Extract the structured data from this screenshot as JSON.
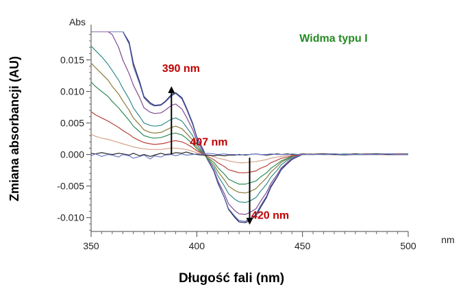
{
  "chart_data": {
    "type": "line",
    "title": "",
    "annotation_title": "Widma typu I",
    "xlabel": "Długość fali (nm)",
    "ylabel": "Zmiana absorbancji (AU)",
    "x_unit": "nm",
    "y_unit": "Abs",
    "xlim": [
      350,
      500
    ],
    "ylim": [
      -0.0122,
      0.0195
    ],
    "x_ticks": [
      350,
      400,
      450,
      500
    ],
    "x_tick_labels": [
      "350",
      "400",
      "450",
      "500"
    ],
    "y_ticks": [
      -0.01,
      -0.005,
      0.0,
      0.005,
      0.01,
      0.015
    ],
    "y_tick_labels": [
      "-0.010",
      "-0.005",
      "0.000",
      "0.005",
      "0.010",
      "0.015"
    ],
    "grid": false,
    "annotations": [
      {
        "label": "390 nm",
        "x": 388,
        "y_from": 0.0,
        "y_to": 0.0105,
        "color": "#c00000"
      },
      {
        "label": "407 nm",
        "x": 407,
        "y": 0.0,
        "color": "#c00000"
      },
      {
        "label": "420 nm",
        "x": 425,
        "y_from": -0.0005,
        "y_to": -0.0108,
        "color": "#c00000"
      }
    ],
    "x": [
      350,
      352,
      355,
      358,
      360,
      363,
      365,
      368,
      370,
      373,
      375,
      378,
      380,
      383,
      385,
      388,
      390,
      393,
      395,
      398,
      400,
      403,
      405,
      408,
      410,
      413,
      415,
      418,
      420,
      423,
      425,
      428,
      430,
      433,
      435,
      438,
      440,
      443,
      445,
      448,
      450,
      455,
      460,
      465,
      470,
      475,
      480,
      485,
      490,
      495,
      500
    ],
    "series": [
      {
        "color": "#2b2b5e",
        "values": [
          0.0195,
          0.0195,
          0.0195,
          0.0195,
          0.0195,
          0.0195,
          0.0195,
          0.0178,
          0.0145,
          0.0115,
          0.0092,
          0.0082,
          0.0078,
          0.0079,
          0.0084,
          0.0095,
          0.0098,
          0.009,
          0.0075,
          0.005,
          0.0028,
          0.0008,
          -0.0007,
          -0.0025,
          -0.0045,
          -0.0068,
          -0.0087,
          -0.01,
          -0.0107,
          -0.0108,
          -0.0105,
          -0.0097,
          -0.0085,
          -0.0068,
          -0.0052,
          -0.0036,
          -0.0024,
          -0.0014,
          -0.0008,
          -0.0003,
          0.0,
          0.0001,
          0.0001,
          0.0001,
          0.0,
          0.0,
          0.0,
          0.0001,
          0.0001,
          0.0001,
          0.0001
        ]
      },
      {
        "color": "#4a5aa8",
        "values": [
          0.0195,
          0.0195,
          0.0195,
          0.0195,
          0.0195,
          0.0195,
          0.0195,
          0.0175,
          0.014,
          0.0112,
          0.009,
          0.008,
          0.0077,
          0.0078,
          0.0083,
          0.0093,
          0.0097,
          0.0088,
          0.0073,
          0.0048,
          0.0027,
          0.0007,
          -0.0008,
          -0.0026,
          -0.0046,
          -0.0068,
          -0.0086,
          -0.0098,
          -0.0105,
          -0.0106,
          -0.0102,
          -0.0095,
          -0.0082,
          -0.0066,
          -0.005,
          -0.0035,
          -0.0023,
          -0.0013,
          -0.0007,
          -0.0003,
          0.0,
          0.0001,
          0.0,
          0.0,
          -0.0001,
          0.0,
          0.0,
          0.0,
          0.0001,
          0.0,
          0.0
        ]
      },
      {
        "color": "#7e4a8e",
        "values": [
          0.0195,
          0.0195,
          0.0195,
          0.0195,
          0.019,
          0.017,
          0.015,
          0.0128,
          0.011,
          0.009,
          0.0074,
          0.0067,
          0.0065,
          0.0066,
          0.007,
          0.0078,
          0.008,
          0.0072,
          0.006,
          0.004,
          0.0022,
          0.0005,
          -0.0008,
          -0.0024,
          -0.0042,
          -0.0062,
          -0.0078,
          -0.0089,
          -0.0094,
          -0.0095,
          -0.0092,
          -0.0086,
          -0.0075,
          -0.006,
          -0.0046,
          -0.0032,
          -0.0021,
          -0.0012,
          -0.0006,
          -0.0002,
          0.0,
          0.0001,
          0.0001,
          0.0,
          0.0,
          0.0,
          0.0001,
          0.0,
          0.0,
          0.0,
          0.0
        ]
      },
      {
        "color": "#2e8b8b",
        "values": [
          0.0172,
          0.0165,
          0.0155,
          0.0143,
          0.0133,
          0.0118,
          0.0105,
          0.0088,
          0.0074,
          0.006,
          0.005,
          0.0046,
          0.0045,
          0.0046,
          0.005,
          0.0056,
          0.0058,
          0.0053,
          0.0044,
          0.003,
          0.0016,
          0.0003,
          -0.0007,
          -0.002,
          -0.0034,
          -0.005,
          -0.0062,
          -0.0071,
          -0.0075,
          -0.0076,
          -0.0074,
          -0.0068,
          -0.0059,
          -0.0047,
          -0.0036,
          -0.0025,
          -0.0016,
          -0.0009,
          -0.0004,
          -0.0001,
          0.0,
          0.0001,
          0.0,
          0.0001,
          0.0,
          0.0,
          0.0001,
          0.0001,
          0.0,
          0.0001,
          0.0
        ]
      },
      {
        "color": "#8a7a3a",
        "values": [
          0.0145,
          0.0138,
          0.0128,
          0.0118,
          0.0108,
          0.0096,
          0.0085,
          0.007,
          0.0058,
          0.0047,
          0.0039,
          0.0035,
          0.0034,
          0.0035,
          0.0038,
          0.0043,
          0.0045,
          0.0041,
          0.0034,
          0.0023,
          0.0012,
          0.0002,
          -0.0006,
          -0.0016,
          -0.0027,
          -0.004,
          -0.005,
          -0.0057,
          -0.006,
          -0.0061,
          -0.0059,
          -0.0054,
          -0.0047,
          -0.0037,
          -0.0028,
          -0.0019,
          -0.0012,
          -0.0007,
          -0.0003,
          -0.0001,
          0.0,
          0.0001,
          0.0001,
          0.0,
          0.0,
          0.0001,
          0.0,
          0.0,
          0.0001,
          0.0,
          0.0
        ]
      },
      {
        "color": "#2e8b57",
        "values": [
          0.0115,
          0.0108,
          0.01,
          0.0092,
          0.0084,
          0.0074,
          0.0066,
          0.0054,
          0.0045,
          0.0036,
          0.003,
          0.0027,
          0.0026,
          0.0027,
          0.0029,
          0.0033,
          0.0034,
          0.0031,
          0.0026,
          0.0017,
          0.0009,
          0.0001,
          -0.0005,
          -0.0012,
          -0.0021,
          -0.0031,
          -0.0039,
          -0.0044,
          -0.0047,
          -0.0047,
          -0.0045,
          -0.0042,
          -0.0036,
          -0.0029,
          -0.0022,
          -0.0015,
          -0.001,
          -0.0006,
          -0.0003,
          -0.0001,
          0.0,
          0.0001,
          0.0,
          0.0,
          0.0001,
          0.0,
          0.0,
          0.0001,
          0.0,
          0.0,
          0.0001
        ]
      },
      {
        "color": "#b8423a",
        "values": [
          0.0068,
          0.0063,
          0.0058,
          0.0053,
          0.0049,
          0.0043,
          0.0038,
          0.0032,
          0.0027,
          0.0022,
          0.0019,
          0.0017,
          0.0016,
          0.0017,
          0.0018,
          0.0021,
          0.0022,
          0.002,
          0.0017,
          0.0011,
          0.0006,
          0.0001,
          -0.0003,
          -0.0008,
          -0.0013,
          -0.0019,
          -0.0024,
          -0.0027,
          -0.0029,
          -0.0029,
          -0.0028,
          -0.0026,
          -0.0022,
          -0.0018,
          -0.0013,
          -0.0009,
          -0.0006,
          -0.0004,
          -0.0002,
          -0.0001,
          0.0,
          0.0,
          0.0001,
          0.0,
          0.0,
          0.0,
          0.0001,
          0.0,
          0.0,
          0.0001,
          0.0
        ]
      },
      {
        "color": "#d4a08a",
        "values": [
          0.0032,
          0.0029,
          0.0026,
          0.0024,
          0.0022,
          0.0019,
          0.0017,
          0.0014,
          0.0012,
          0.001,
          0.0009,
          0.0008,
          0.0008,
          0.0008,
          0.0009,
          0.001,
          0.001,
          0.0009,
          0.0008,
          0.0005,
          0.0003,
          0.0,
          -0.0001,
          -0.0003,
          -0.0006,
          -0.0008,
          -0.001,
          -0.0012,
          -0.0013,
          -0.0013,
          -0.0012,
          -0.0011,
          -0.001,
          -0.0008,
          -0.0006,
          -0.0004,
          -0.0003,
          -0.0002,
          -0.0001,
          0.0,
          0.0,
          0.0001,
          0.0,
          0.0,
          0.0,
          0.0001,
          0.0,
          0.0,
          0.0,
          0.0,
          0.0
        ]
      },
      {
        "color": "#222222",
        "values": [
          0.0002,
          0.0001,
          0.0003,
          0.0001,
          0.0,
          0.0002,
          0.0001,
          -0.0001,
          0.0002,
          -0.0002,
          0.0,
          -0.0003,
          -0.0001,
          0.0002,
          0.0,
          0.0001,
          0.0003,
          0.0002,
          0.0004,
          0.0001,
          0.0,
          -0.0001,
          -0.0001,
          -0.0002,
          -0.0001,
          -0.0002,
          -0.0001,
          -0.0001,
          0.0,
          -0.0001,
          0.0,
          0.0001,
          0.0,
          -0.0001,
          0.0,
          0.0001,
          0.0,
          0.0001,
          0.0,
          0.0,
          0.0001,
          0.0,
          0.0001,
          0.0,
          0.0,
          0.0001,
          0.0,
          0.0001,
          0.0,
          0.0,
          0.0
        ]
      },
      {
        "color": "#6a78c8",
        "values": [
          -0.0002,
          0.0001,
          -0.0003,
          0.0,
          -0.0001,
          -0.0004,
          0.0,
          -0.0002,
          -0.0006,
          -0.0003,
          -0.0001,
          -0.0007,
          -0.0002,
          -0.0004,
          -0.0001,
          0.0,
          -0.0002,
          0.0001,
          -0.0001,
          0.0,
          0.0001,
          0.0,
          0.0002,
          0.0001,
          0.0,
          0.0001,
          0.0,
          0.0,
          -0.0001,
          0.0,
          0.0,
          0.0001,
          0.0,
          0.0,
          0.0001,
          0.0,
          0.0,
          0.0,
          0.0001,
          0.0,
          0.0,
          0.0,
          0.0,
          0.0001,
          0.0,
          0.0,
          0.0,
          0.0,
          0.0001,
          0.0,
          0.0
        ]
      }
    ]
  }
}
